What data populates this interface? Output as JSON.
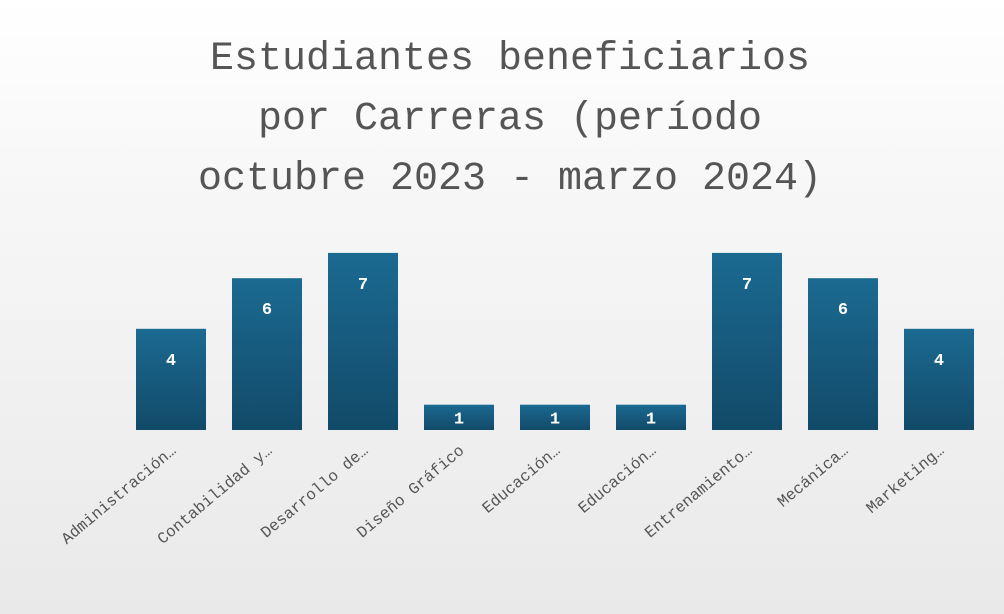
{
  "chart_data": {
    "type": "bar",
    "title": "Estudiantes beneficiarios por Carreras (período octubre 2023 - marzo 2024)",
    "categories": [
      "Administración…",
      "Contabilidad y…",
      "Desarrollo de…",
      "Diseño Gráfico",
      "Educación…",
      "Educación…",
      "Entrenamiento…",
      "Mecánica…",
      "Marketing…"
    ],
    "values": [
      4,
      6,
      7,
      1,
      1,
      1,
      7,
      6,
      4
    ],
    "color": "#175e82"
  }
}
